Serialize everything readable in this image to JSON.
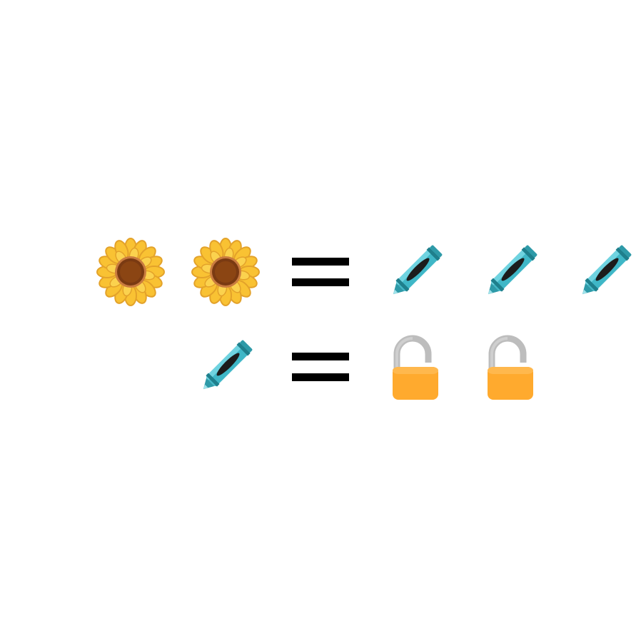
{
  "puzzle": {
    "equations": [
      {
        "left": [
          "sunflower",
          "sunflower"
        ],
        "operator": "equals",
        "right": [
          "crayon",
          "crayon",
          "crayon"
        ]
      },
      {
        "left": [
          "crayon"
        ],
        "operator": "equals",
        "right": [
          "unlocked-padlock",
          "unlocked-padlock"
        ]
      }
    ]
  },
  "colors": {
    "background": "#ffffff",
    "equals_sign": "#000000",
    "sunflower_petal": "#F9C233",
    "sunflower_petal_edge": "#E3A22A",
    "sunflower_center": "#8B4513",
    "sunflower_ring": "#C97B3F",
    "crayon_body": "#3FB7C7",
    "crayon_dark": "#1F7F8C",
    "crayon_stripe": "#1C1C1C",
    "lock_body": "#FFAA2E",
    "lock_shackle": "#BDBDBD"
  }
}
